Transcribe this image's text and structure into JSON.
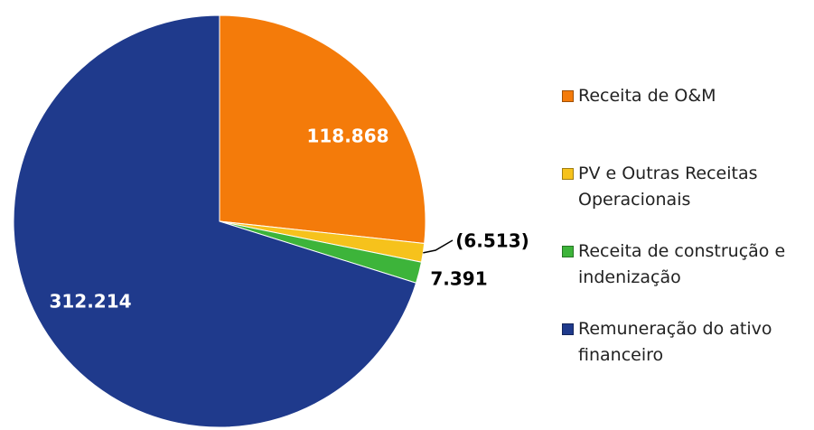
{
  "chart_data": {
    "type": "pie",
    "categories": [
      "Receita de O&M",
      "PV e Outras Receitas Operacionais",
      "Receita de construção e indenização",
      "Remuneração do ativo financeiro"
    ],
    "values": [
      118868,
      -6513,
      7391,
      312214
    ],
    "value_labels": [
      "118.868",
      "(6.513)",
      "7.391",
      "312.214"
    ],
    "colors": [
      "#f47b0a",
      "#f6c21c",
      "#3db43a",
      "#1f3a8c"
    ],
    "legend": "right"
  }
}
